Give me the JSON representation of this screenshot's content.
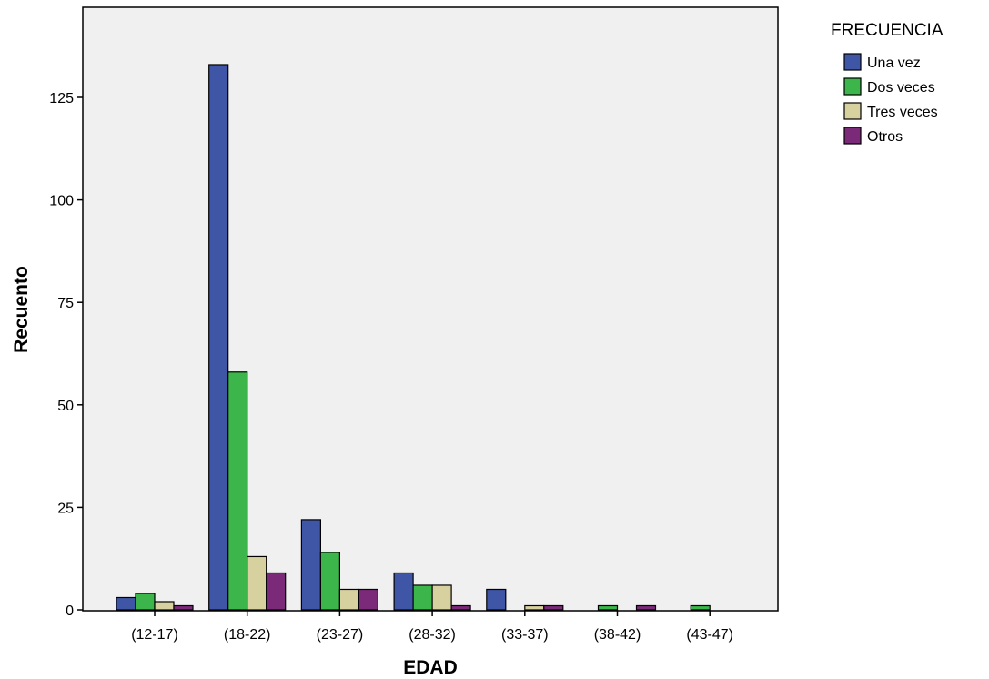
{
  "chart_data": {
    "type": "bar",
    "xlabel": "EDAD",
    "ylabel": "Recuento",
    "categories": [
      "(12-17)",
      "(18-22)",
      "(23-27)",
      "(28-32)",
      "(33-37)",
      "(38-42)",
      "(43-47)"
    ],
    "ylim": [
      0,
      140
    ],
    "yticks": [
      0,
      25,
      50,
      75,
      100,
      125
    ],
    "legend_title": "FRECUENCIA",
    "legend_position": "top-right outside",
    "grid": false,
    "plot_background": "#f0f0f0",
    "series": [
      {
        "name": "Una vez",
        "color": "#3f55a5",
        "values": [
          3,
          133,
          22,
          9,
          5,
          0,
          0
        ]
      },
      {
        "name": "Dos veces",
        "color": "#3cb54a",
        "values": [
          4,
          58,
          14,
          6,
          0,
          1,
          1
        ]
      },
      {
        "name": "Tres veces",
        "color": "#d7d1a0",
        "values": [
          2,
          13,
          5,
          6,
          1,
          0,
          0
        ]
      },
      {
        "name": "Otros",
        "color": "#7b2a7a",
        "values": [
          1,
          9,
          5,
          1,
          1,
          1,
          0
        ]
      }
    ]
  }
}
